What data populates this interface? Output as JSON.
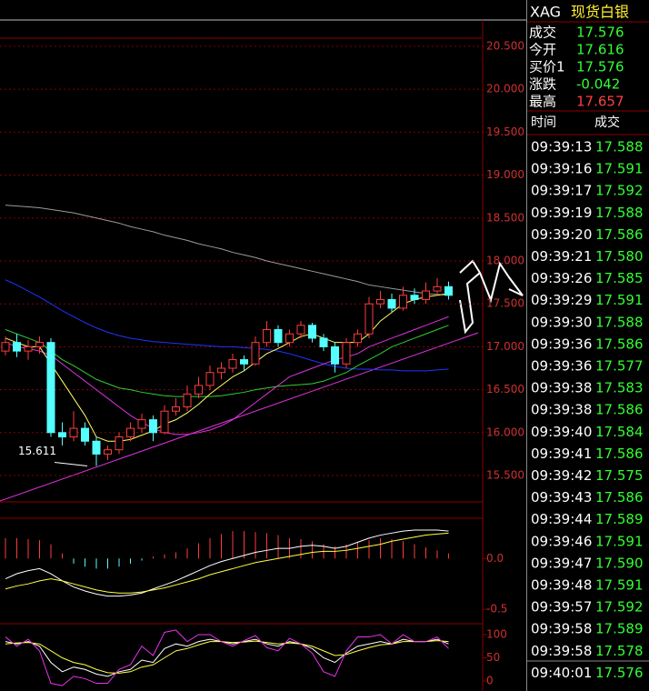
{
  "header": {
    "symbol": "XAG",
    "name": "现货白银"
  },
  "quote": [
    {
      "label": "成交",
      "value": "17.576",
      "color": "#33ff33"
    },
    {
      "label": "今开",
      "value": "17.616",
      "color": "#33ff33"
    },
    {
      "label": "买价1",
      "value": "17.576",
      "color": "#33ff33"
    },
    {
      "label": "涨跌",
      "value": "-0.042",
      "color": "#33ff33"
    },
    {
      "label": "最高",
      "value": "17.657",
      "color": "#ff4040"
    }
  ],
  "ticks_table": {
    "columns": [
      "时间",
      "成交"
    ],
    "price_color": "#33ff33",
    "rows": [
      [
        "09:39:13",
        "17.588"
      ],
      [
        "09:39:16",
        "17.591"
      ],
      [
        "09:39:17",
        "17.592"
      ],
      [
        "09:39:19",
        "17.588"
      ],
      [
        "09:39:20",
        "17.586"
      ],
      [
        "09:39:21",
        "17.580"
      ],
      [
        "09:39:26",
        "17.585"
      ],
      [
        "09:39:29",
        "17.591"
      ],
      [
        "09:39:30",
        "17.588"
      ],
      [
        "09:39:36",
        "17.586"
      ],
      [
        "09:39:36",
        "17.577"
      ],
      [
        "09:39:38",
        "17.583"
      ],
      [
        "09:39:38",
        "17.586"
      ],
      [
        "09:39:40",
        "17.584"
      ],
      [
        "09:39:41",
        "17.586"
      ],
      [
        "09:39:42",
        "17.575"
      ],
      [
        "09:39:43",
        "17.586"
      ],
      [
        "09:39:44",
        "17.589"
      ],
      [
        "09:39:46",
        "17.591"
      ],
      [
        "09:39:47",
        "17.590"
      ],
      [
        "09:39:48",
        "17.591"
      ],
      [
        "09:39:57",
        "17.592"
      ],
      [
        "09:39:58",
        "17.589"
      ],
      [
        "09:39:58",
        "17.578"
      ],
      [
        "09:40:01",
        "17.576"
      ]
    ]
  },
  "price_chart": {
    "type": "candlestick",
    "ylim": [
      15.193,
      20.595
    ],
    "yticks": [
      {
        "value": 20.5,
        "label": "20.500"
      },
      {
        "value": 20,
        "label": "20.000"
      },
      {
        "value": 19.5,
        "label": "19.500"
      },
      {
        "value": 19,
        "label": "19.000"
      },
      {
        "value": 18.5,
        "label": "18.500"
      },
      {
        "value": 18,
        "label": "18.000"
      },
      {
        "value": 17.5,
        "label": "17.500"
      },
      {
        "value": 17,
        "label": "17.000"
      },
      {
        "value": 16.5,
        "label": "16.500"
      },
      {
        "value": 16,
        "label": "16.000"
      },
      {
        "value": 15.5,
        "label": "15.500"
      }
    ],
    "up_color": "#ff3b3b",
    "down_color": "#54ffff",
    "low_label": 15.611,
    "candles": [
      [
        16.95,
        17.12,
        16.9,
        17.05
      ],
      [
        17.05,
        17.15,
        16.88,
        16.95
      ],
      [
        16.95,
        17.08,
        16.85,
        17.0
      ],
      [
        17.0,
        17.12,
        16.92,
        17.05
      ],
      [
        17.05,
        17.1,
        15.95,
        16.0
      ],
      [
        16.0,
        16.12,
        15.85,
        15.95
      ],
      [
        15.95,
        16.25,
        15.9,
        16.05
      ],
      [
        16.05,
        16.12,
        15.85,
        15.9
      ],
      [
        15.9,
        15.95,
        15.611,
        15.75
      ],
      [
        15.75,
        15.85,
        15.68,
        15.8
      ],
      [
        15.8,
        16.0,
        15.75,
        15.95
      ],
      [
        15.95,
        16.12,
        15.9,
        16.05
      ],
      [
        16.05,
        16.22,
        16.0,
        16.15
      ],
      [
        16.15,
        16.2,
        15.9,
        16.0
      ],
      [
        16.0,
        16.32,
        15.98,
        16.25
      ],
      [
        16.25,
        16.4,
        16.2,
        16.3
      ],
      [
        16.3,
        16.55,
        16.25,
        16.45
      ],
      [
        16.45,
        16.65,
        16.4,
        16.55
      ],
      [
        16.55,
        16.78,
        16.5,
        16.7
      ],
      [
        16.7,
        16.82,
        16.62,
        16.75
      ],
      [
        16.75,
        16.92,
        16.7,
        16.85
      ],
      [
        16.85,
        16.9,
        16.72,
        16.8
      ],
      [
        16.8,
        17.12,
        16.78,
        17.05
      ],
      [
        17.05,
        17.3,
        17.0,
        17.2
      ],
      [
        17.2,
        17.25,
        17.0,
        17.05
      ],
      [
        17.05,
        17.2,
        17.0,
        17.15
      ],
      [
        17.15,
        17.3,
        17.1,
        17.25
      ],
      [
        17.25,
        17.28,
        17.05,
        17.1
      ],
      [
        17.1,
        17.15,
        16.95,
        17.0
      ],
      [
        17.0,
        17.05,
        16.7,
        16.8
      ],
      [
        16.8,
        17.1,
        16.75,
        17.05
      ],
      [
        17.05,
        17.2,
        17.0,
        17.15
      ],
      [
        17.15,
        17.58,
        17.1,
        17.5
      ],
      [
        17.5,
        17.65,
        17.45,
        17.55
      ],
      [
        17.55,
        17.62,
        17.4,
        17.45
      ],
      [
        17.45,
        17.7,
        17.42,
        17.6
      ],
      [
        17.6,
        17.68,
        17.5,
        17.55
      ],
      [
        17.55,
        17.75,
        17.5,
        17.65
      ],
      [
        17.65,
        17.8,
        17.6,
        17.7
      ],
      [
        17.7,
        17.76,
        17.55,
        17.6
      ]
    ],
    "ma": [
      {
        "color": "#9a9a9a",
        "values": [
          18.65,
          18.64,
          18.63,
          18.62,
          18.6,
          18.58,
          18.56,
          18.53,
          18.5,
          18.47,
          18.44,
          18.4,
          18.37,
          18.34,
          18.3,
          18.27,
          18.24,
          18.2,
          18.17,
          18.14,
          18.1,
          18.07,
          18.04,
          18.0,
          17.97,
          17.94,
          17.91,
          17.88,
          17.85,
          17.82,
          17.79,
          17.76,
          17.72,
          17.7,
          17.68,
          17.66,
          17.64,
          17.62,
          17.61,
          17.6
        ]
      },
      {
        "color": "#2233ff",
        "values": [
          17.78,
          17.72,
          17.65,
          17.58,
          17.5,
          17.42,
          17.35,
          17.28,
          17.22,
          17.17,
          17.13,
          17.1,
          17.08,
          17.06,
          17.05,
          17.04,
          17.03,
          17.02,
          17.01,
          17.0,
          17.0,
          16.99,
          16.98,
          16.97,
          16.95,
          16.92,
          16.88,
          16.84,
          16.8,
          16.77,
          16.75,
          16.74,
          16.74,
          16.73,
          16.73,
          16.72,
          16.72,
          16.72,
          16.73,
          16.74
        ]
      },
      {
        "color": "#33cc33",
        "values": [
          17.2,
          17.15,
          17.1,
          17.05,
          16.95,
          16.85,
          16.78,
          16.7,
          16.62,
          16.57,
          16.52,
          16.5,
          16.47,
          16.45,
          16.43,
          16.42,
          16.42,
          16.42,
          16.42,
          16.43,
          16.45,
          16.47,
          16.5,
          16.52,
          16.54,
          16.55,
          16.56,
          16.57,
          16.6,
          16.65,
          16.7,
          16.78,
          16.85,
          16.92,
          17.0,
          17.05,
          17.1,
          17.15,
          17.2,
          17.25
        ]
      },
      {
        "color": "#dd33dd",
        "values": [
          17.05,
          17.0,
          16.98,
          16.95,
          16.9,
          16.8,
          16.7,
          16.6,
          16.5,
          16.4,
          16.3,
          16.2,
          16.12,
          16.05,
          16.0,
          15.98,
          15.98,
          16.0,
          16.03,
          16.08,
          16.15,
          16.25,
          16.35,
          16.45,
          16.55,
          16.65,
          16.7,
          16.75,
          16.8,
          16.85,
          16.88,
          16.92,
          17.0,
          17.05,
          17.1,
          17.15,
          17.2,
          17.25,
          17.3,
          17.35
        ]
      },
      {
        "color": "#ffff66",
        "values": [
          17.1,
          17.05,
          17.0,
          17.0,
          16.8,
          16.6,
          16.4,
          16.2,
          15.95,
          15.9,
          15.9,
          15.92,
          15.97,
          16.02,
          16.1,
          16.15,
          16.23,
          16.33,
          16.45,
          16.55,
          16.65,
          16.72,
          16.82,
          16.92,
          16.98,
          17.05,
          17.12,
          17.15,
          17.1,
          17.05,
          17.05,
          17.05,
          17.15,
          17.3,
          17.4,
          17.5,
          17.55,
          17.58,
          17.6,
          17.62
        ]
      }
    ]
  },
  "macd": {
    "ylim": [
      -0.642,
      0.396
    ],
    "yticks": [
      {
        "value": 0,
        "label": "0.0"
      },
      -0.5
    ],
    "up_color": "#ff3b3b",
    "down_color": "#54ffff",
    "bars": [
      0.2,
      0.2,
      0.19,
      0.18,
      0.14,
      0.05,
      -0.05,
      -0.08,
      -0.1,
      -0.1,
      -0.08,
      -0.05,
      -0.02,
      0.02,
      0.04,
      0.06,
      0.1,
      0.15,
      0.2,
      0.24,
      0.27,
      0.27,
      0.26,
      0.25,
      0.23,
      0.2,
      0.19,
      0.17,
      0.14,
      0.12,
      0.14,
      0.16,
      0.18,
      0.2,
      0.19,
      0.17,
      0.14,
      0.11,
      0.08,
      0.05
    ],
    "lines": [
      {
        "color": "#ffffff",
        "values": [
          -0.2,
          -0.15,
          -0.12,
          -0.1,
          -0.15,
          -0.22,
          -0.28,
          -0.32,
          -0.35,
          -0.37,
          -0.37,
          -0.36,
          -0.34,
          -0.3,
          -0.26,
          -0.22,
          -0.17,
          -0.12,
          -0.07,
          -0.03,
          0.0,
          0.03,
          0.06,
          0.08,
          0.1,
          0.1,
          0.12,
          0.13,
          0.12,
          0.1,
          0.12,
          0.16,
          0.2,
          0.23,
          0.25,
          0.27,
          0.28,
          0.28,
          0.28,
          0.27
        ]
      },
      {
        "color": "#ffff44",
        "values": [
          -0.3,
          -0.27,
          -0.25,
          -0.22,
          -0.2,
          -0.22,
          -0.25,
          -0.28,
          -0.31,
          -0.33,
          -0.34,
          -0.34,
          -0.33,
          -0.31,
          -0.29,
          -0.26,
          -0.23,
          -0.2,
          -0.16,
          -0.13,
          -0.1,
          -0.07,
          -0.04,
          -0.02,
          0.0,
          0.02,
          0.04,
          0.06,
          0.07,
          0.07,
          0.08,
          0.1,
          0.12,
          0.14,
          0.17,
          0.19,
          0.21,
          0.23,
          0.24,
          0.25
        ]
      }
    ]
  },
  "kdj": {
    "ylim": [
      -15.7,
      115.7
    ],
    "yticks": [
      100,
      50,
      0
    ],
    "lines": [
      {
        "color": "#ffffff",
        "values": [
          85,
          80,
          85,
          75,
          40,
          20,
          30,
          25,
          15,
          10,
          20,
          25,
          45,
          40,
          70,
          80,
          75,
          85,
          90,
          85,
          80,
          85,
          90,
          80,
          75,
          85,
          80,
          70,
          50,
          40,
          60,
          75,
          80,
          85,
          80,
          90,
          85,
          85,
          90,
          80
        ]
      },
      {
        "color": "#ffff44",
        "values": [
          80,
          82,
          83,
          80,
          65,
          50,
          40,
          35,
          25,
          18,
          17,
          20,
          30,
          35,
          50,
          65,
          70,
          78,
          85,
          85,
          83,
          84,
          86,
          83,
          80,
          82,
          80,
          75,
          65,
          55,
          57,
          65,
          72,
          78,
          80,
          85,
          85,
          85,
          87,
          85
        ]
      },
      {
        "color": "#ee33ee",
        "values": [
          95,
          75,
          90,
          65,
          -5,
          -10,
          10,
          5,
          -5,
          -5,
          25,
          35,
          75,
          55,
          105,
          110,
          85,
          100,
          100,
          85,
          75,
          87,
          98,
          72,
          65,
          92,
          80,
          60,
          20,
          10,
          65,
          95,
          95,
          100,
          80,
          100,
          85,
          85,
          95,
          70
        ]
      }
    ]
  }
}
